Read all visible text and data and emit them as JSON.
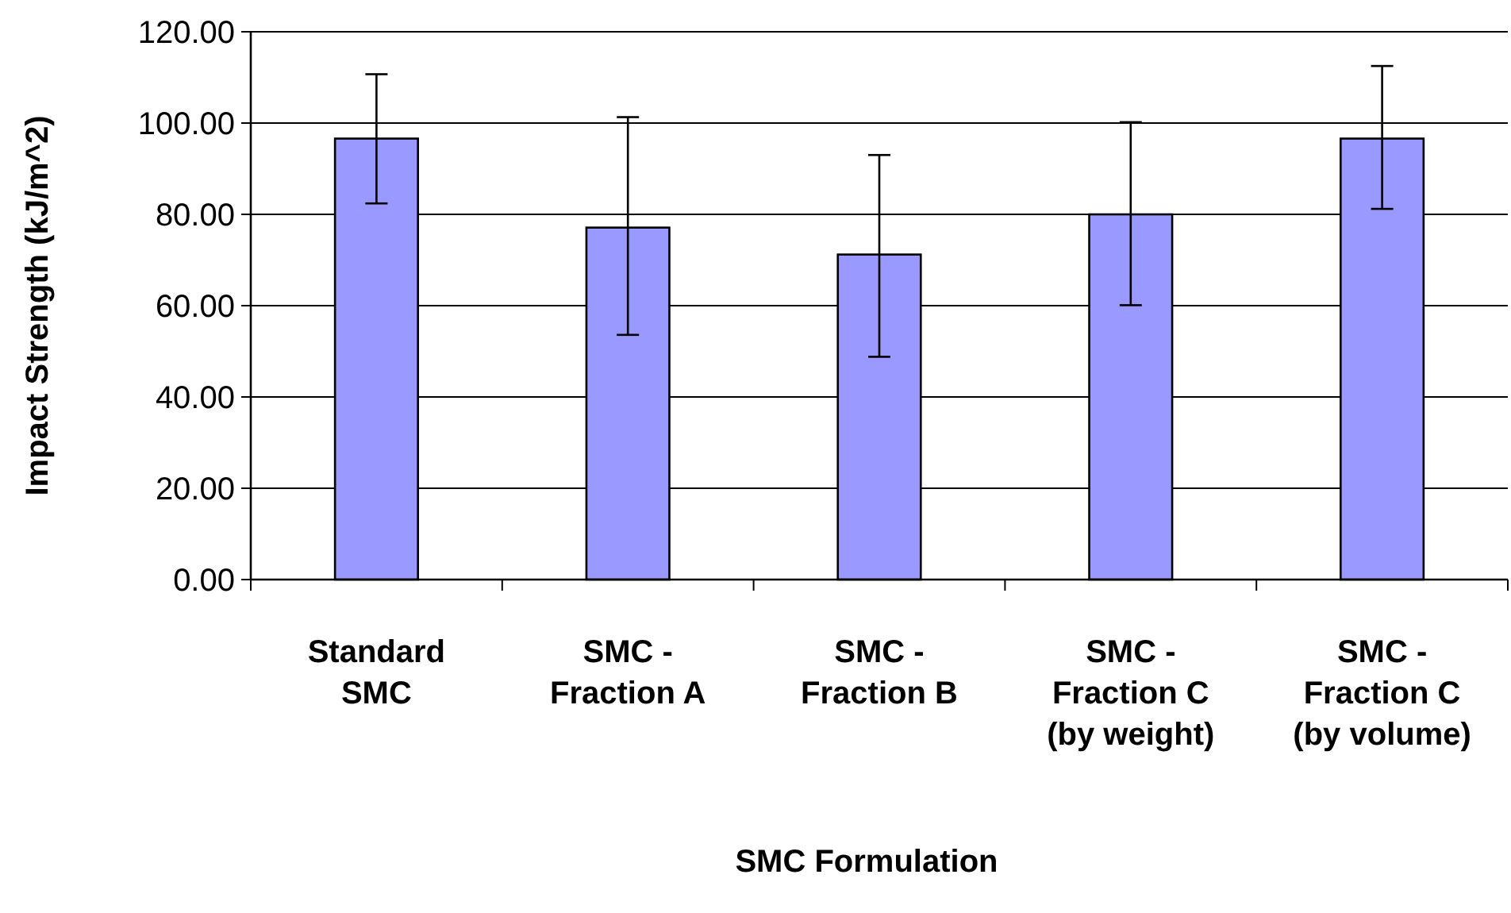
{
  "chart_data": {
    "type": "bar",
    "xlabel": "SMC Formulation",
    "ylabel": "Impact Strength (kJ/m^2)",
    "categories": [
      "Standard SMC",
      "SMC - Fraction A",
      "SMC - Fraction B",
      "SMC - Fraction C (by weight)",
      "SMC - Fraction C (by volume)"
    ],
    "values": [
      96.6,
      77.1,
      71.2,
      80.0,
      96.6
    ],
    "errors": [
      [
        82.4,
        110.7
      ],
      [
        53.6,
        101.3
      ],
      [
        48.8,
        93.0
      ],
      [
        60.1,
        100.2
      ],
      [
        81.2,
        112.5
      ]
    ],
    "color": "#9999ff",
    "ylim": [
      0,
      120
    ],
    "yticks": [
      {
        "value": 0,
        "label": "0.00"
      },
      {
        "value": 20,
        "label": "20.00"
      },
      {
        "value": 40,
        "label": "40.00"
      },
      {
        "value": 60,
        "label": "60.00"
      },
      {
        "value": 80,
        "label": "80.00"
      },
      {
        "value": 100,
        "label": "100.00"
      },
      {
        "value": 120,
        "label": "120.00"
      }
    ],
    "grid": "y"
  }
}
